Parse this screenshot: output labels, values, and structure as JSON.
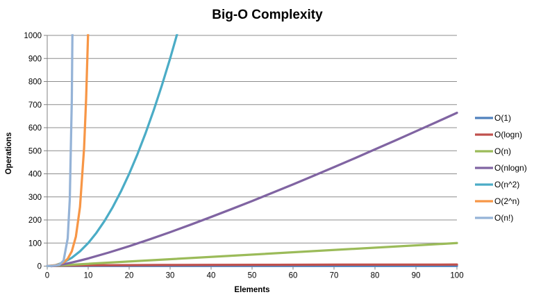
{
  "chart_data": {
    "type": "line",
    "title": "Big-O Complexity",
    "xlabel": "Elements",
    "ylabel": "Operations",
    "xlim": [
      0,
      100
    ],
    "ylim": [
      0,
      1000
    ],
    "x_ticks": [
      0,
      10,
      20,
      30,
      40,
      50,
      60,
      70,
      80,
      90,
      100
    ],
    "y_ticks": [
      0,
      100,
      200,
      300,
      400,
      500,
      600,
      700,
      800,
      900,
      1000
    ],
    "grid": "horizontal",
    "legend_position": "right",
    "series": [
      {
        "name": "O(1)",
        "color": "#4F81BD",
        "points": [
          [
            0,
            1
          ],
          [
            100,
            1
          ]
        ]
      },
      {
        "name": "O(logn)",
        "color": "#C0504D",
        "points": [
          [
            1,
            0
          ],
          [
            2,
            1
          ],
          [
            3,
            1.6
          ],
          [
            4,
            2
          ],
          [
            5,
            2.3
          ],
          [
            6,
            2.6
          ],
          [
            8,
            3
          ],
          [
            10,
            3.3
          ],
          [
            14,
            3.8
          ],
          [
            20,
            4.3
          ],
          [
            28,
            4.8
          ],
          [
            40,
            5.3
          ],
          [
            56,
            5.8
          ],
          [
            72,
            6.2
          ],
          [
            86,
            6.4
          ],
          [
            100,
            6.6
          ]
        ]
      },
      {
        "name": "O(n)",
        "color": "#9BBB59",
        "points": [
          [
            0,
            0
          ],
          [
            100,
            100
          ]
        ]
      },
      {
        "name": "O(nlogn)",
        "color": "#8064A2",
        "points": [
          [
            1,
            0
          ],
          [
            2,
            2
          ],
          [
            4,
            8
          ],
          [
            6,
            15.5
          ],
          [
            8,
            24
          ],
          [
            10,
            33.2
          ],
          [
            15,
            58.6
          ],
          [
            20,
            86.4
          ],
          [
            25,
            116.1
          ],
          [
            30,
            147.2
          ],
          [
            35,
            179.5
          ],
          [
            40,
            212.9
          ],
          [
            45,
            247.1
          ],
          [
            50,
            282.2
          ],
          [
            55,
            318
          ],
          [
            60,
            354.4
          ],
          [
            65,
            391.4
          ],
          [
            70,
            429
          ],
          [
            75,
            467.1
          ],
          [
            80,
            505.8
          ],
          [
            85,
            544.8
          ],
          [
            90,
            584.3
          ],
          [
            95,
            624.2
          ],
          [
            100,
            664.4
          ]
        ]
      },
      {
        "name": "O(n^2)",
        "color": "#4BACC6",
        "points": [
          [
            0,
            0
          ],
          [
            2,
            4
          ],
          [
            4,
            16
          ],
          [
            6,
            36
          ],
          [
            8,
            64
          ],
          [
            10,
            100
          ],
          [
            12,
            144
          ],
          [
            14,
            196
          ],
          [
            16,
            256
          ],
          [
            18,
            324
          ],
          [
            20,
            400
          ],
          [
            22,
            484
          ],
          [
            24,
            576
          ],
          [
            26,
            676
          ],
          [
            28,
            784
          ],
          [
            30,
            900
          ],
          [
            32,
            1024
          ]
        ]
      },
      {
        "name": "O(2^n)",
        "color": "#F79646",
        "points": [
          [
            0,
            1
          ],
          [
            1,
            2
          ],
          [
            2,
            4
          ],
          [
            3,
            8
          ],
          [
            4,
            16
          ],
          [
            5,
            32
          ],
          [
            6,
            64
          ],
          [
            7,
            128
          ],
          [
            8,
            256
          ],
          [
            9,
            512
          ],
          [
            9.5,
            724
          ],
          [
            10,
            1024
          ],
          [
            10.3,
            1261
          ]
        ]
      },
      {
        "name": "O(n!)",
        "color": "#95B3D7",
        "points": [
          [
            0,
            1
          ],
          [
            1,
            1
          ],
          [
            2,
            2
          ],
          [
            3,
            6
          ],
          [
            4,
            24
          ],
          [
            5,
            120
          ],
          [
            5.5,
            290
          ],
          [
            6,
            720
          ],
          [
            6.35,
            1400
          ]
        ]
      }
    ],
    "colors": {
      "gridline": "#8C8C8C",
      "axis": "#808080",
      "text": "#000000",
      "background": "#FFFFFF"
    }
  }
}
